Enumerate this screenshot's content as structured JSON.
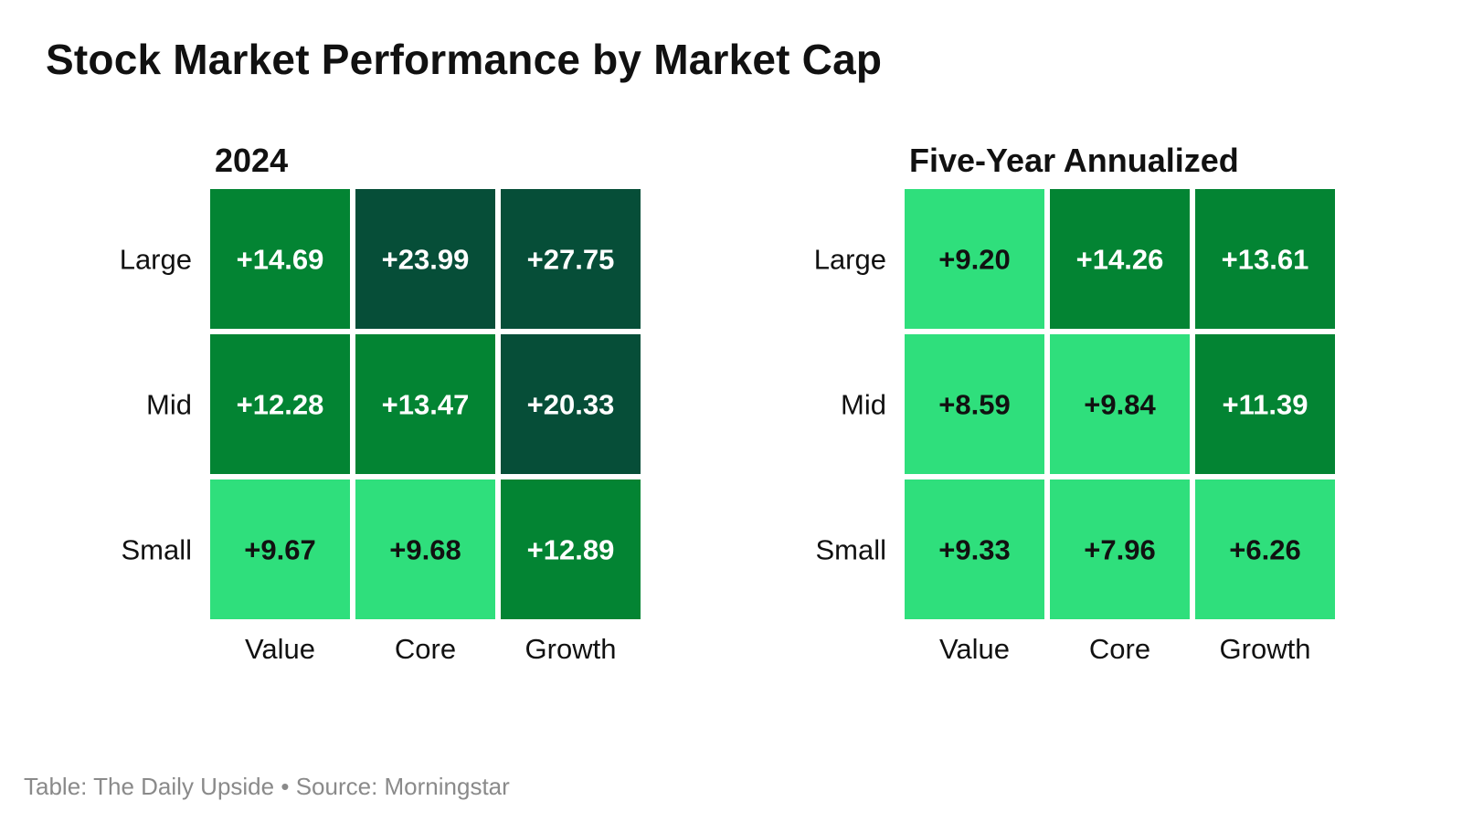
{
  "title": "Stock Market Performance by Market Cap",
  "footer": {
    "table_credit": "Table: The Daily Upside",
    "separator": "•",
    "source": "Source: Morningstar"
  },
  "colors": {
    "light_green": "#2fdf7c",
    "mid_green": "#038433",
    "dark_green": "#064e38",
    "text_dark": "#111111",
    "text_light": "#ffffff"
  },
  "chart_data": [
    {
      "type": "heatmap",
      "title": "2024",
      "rows": [
        "Large",
        "Mid",
        "Small"
      ],
      "columns": [
        "Value",
        "Core",
        "Growth"
      ],
      "labels": [
        [
          "+14.69",
          "+23.99",
          "+27.75"
        ],
        [
          "+12.28",
          "+13.47",
          "+20.33"
        ],
        [
          "+9.67",
          "+9.68",
          "+12.89"
        ]
      ],
      "values": [
        [
          14.69,
          23.99,
          27.75
        ],
        [
          12.28,
          13.47,
          20.33
        ],
        [
          9.67,
          9.68,
          12.89
        ]
      ],
      "color_bins": [
        {
          "min": 0,
          "max": 10,
          "color": "#2fdf7c",
          "text": "#111111"
        },
        {
          "min": 10,
          "max": 20,
          "color": "#038433",
          "text": "#ffffff"
        },
        {
          "min": 20,
          "max": 100,
          "color": "#064e38",
          "text": "#ffffff"
        }
      ],
      "xlabel": "",
      "ylabel": ""
    },
    {
      "type": "heatmap",
      "title": "Five-Year Annualized",
      "rows": [
        "Large",
        "Mid",
        "Small"
      ],
      "columns": [
        "Value",
        "Core",
        "Growth"
      ],
      "labels": [
        [
          "+9.20",
          "+14.26",
          "+13.61"
        ],
        [
          "+8.59",
          "+9.84",
          "+11.39"
        ],
        [
          "+9.33",
          "+7.96",
          "+6.26"
        ]
      ],
      "values": [
        [
          9.2,
          14.26,
          13.61
        ],
        [
          8.59,
          9.84,
          11.39
        ],
        [
          9.33,
          7.96,
          6.26
        ]
      ],
      "color_bins": [
        {
          "min": 0,
          "max": 10,
          "color": "#2fdf7c",
          "text": "#111111"
        },
        {
          "min": 10,
          "max": 20,
          "color": "#038433",
          "text": "#ffffff"
        },
        {
          "min": 20,
          "max": 100,
          "color": "#064e38",
          "text": "#ffffff"
        }
      ],
      "xlabel": "",
      "ylabel": ""
    }
  ]
}
